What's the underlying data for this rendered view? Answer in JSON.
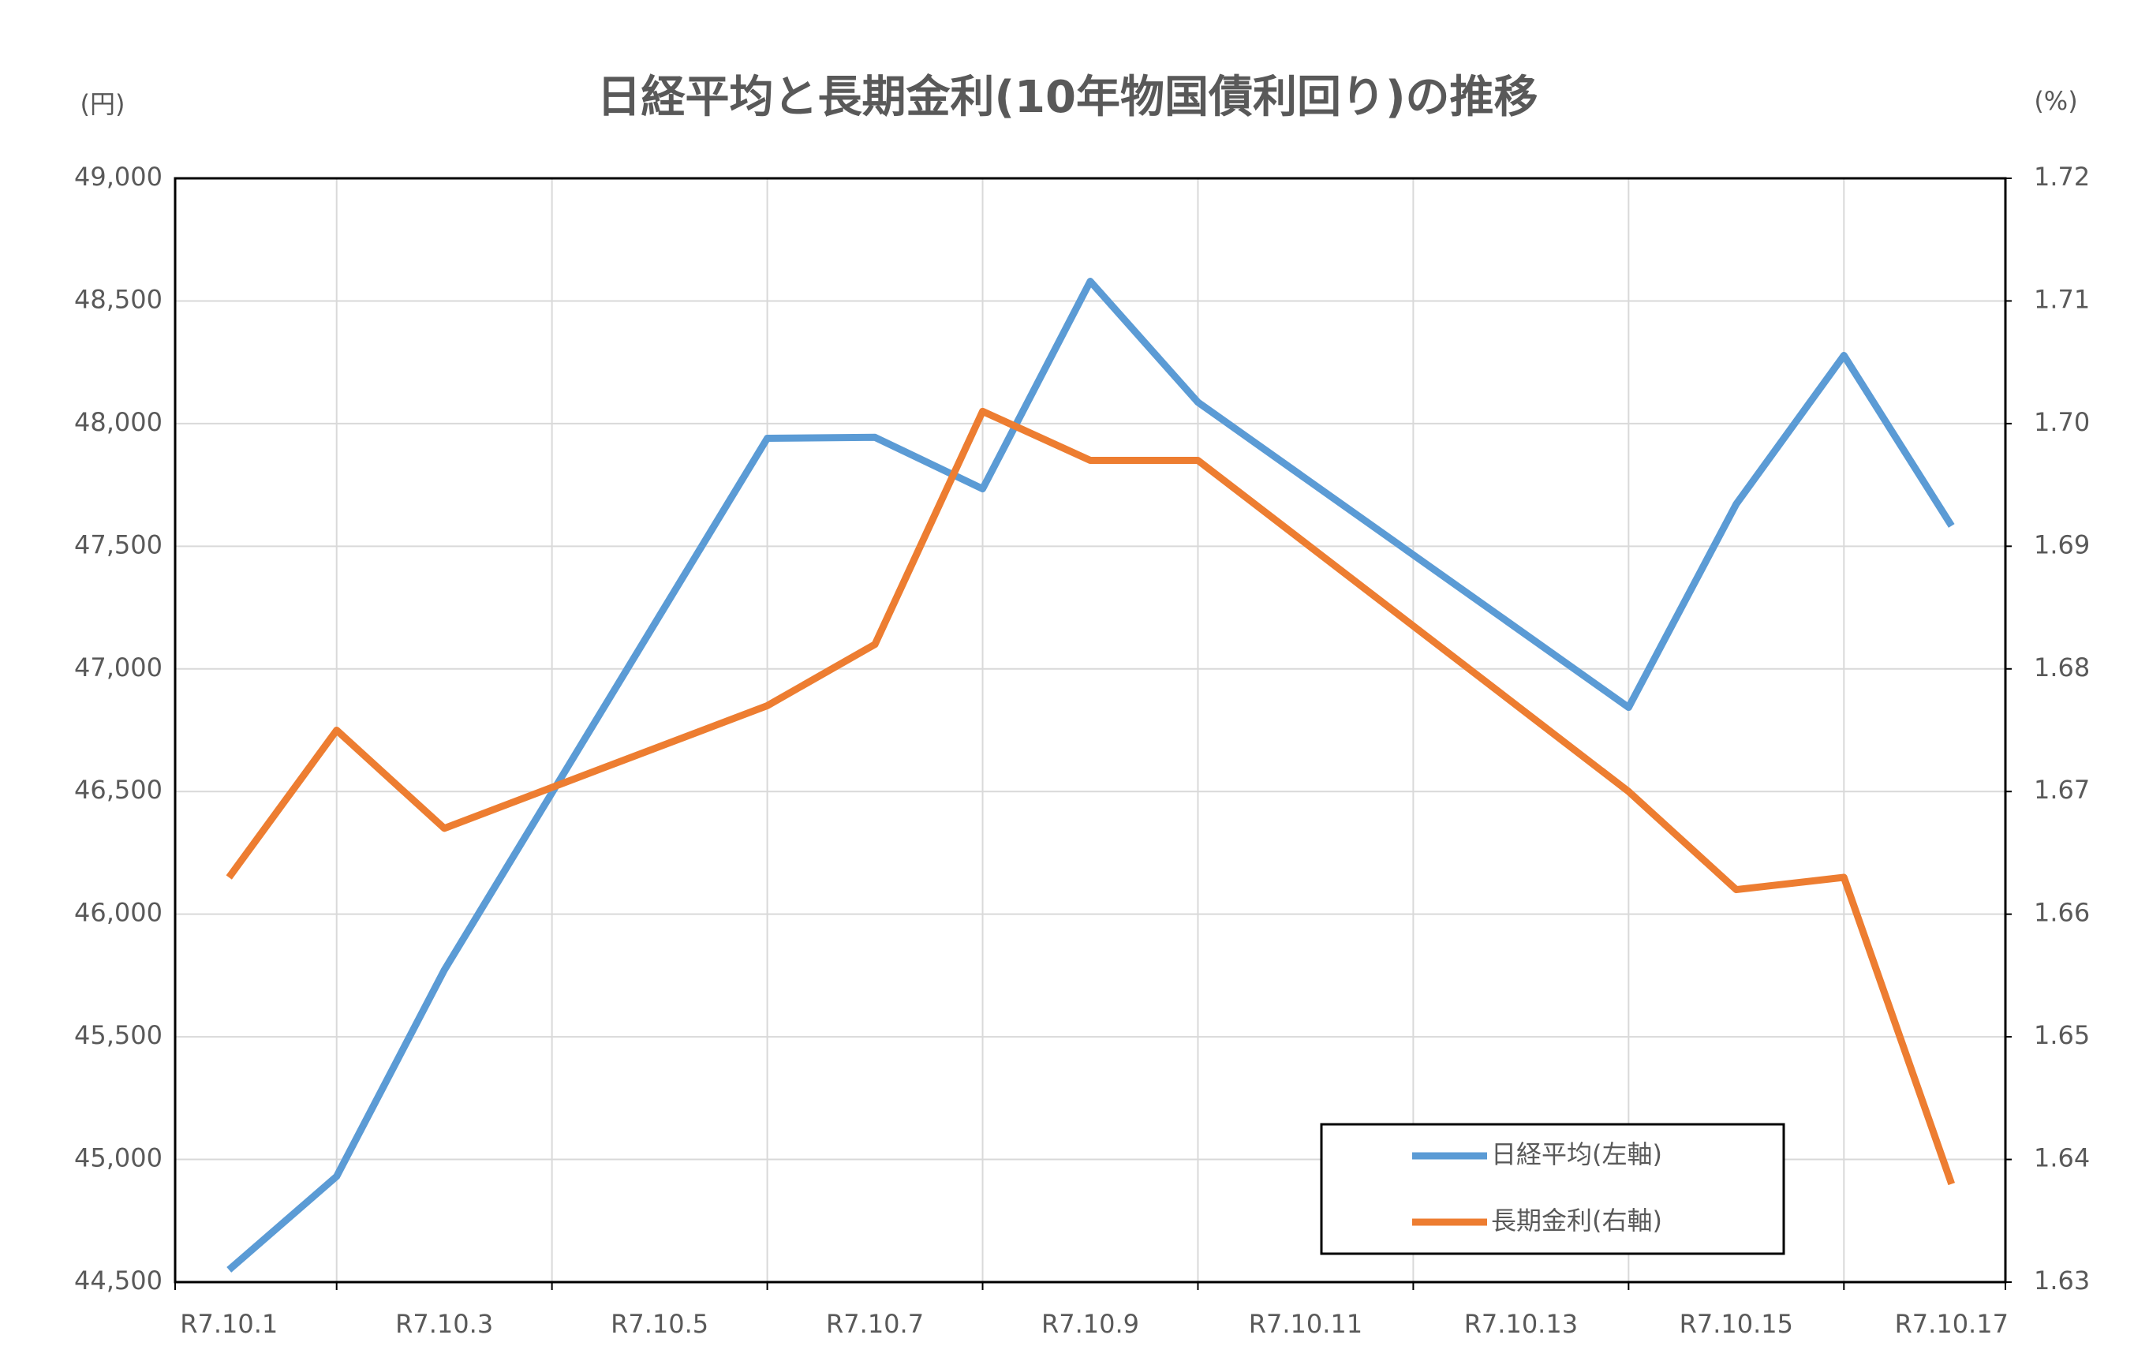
{
  "chart_data": {
    "type": "line",
    "title": "日経平均と長期金利(10年物国債利回り)の推移",
    "y_label": "(円)",
    "y2_label": "(%)",
    "x": [
      1,
      2,
      3,
      6,
      7,
      8,
      9,
      10,
      14,
      15,
      16,
      17
    ],
    "xlim": [
      0.5,
      17.5
    ],
    "xticks": [
      {
        "value": 1,
        "label": "R7.10.1"
      },
      {
        "value": 3,
        "label": "R7.10.3"
      },
      {
        "value": 5,
        "label": "R7.10.5"
      },
      {
        "value": 7,
        "label": "R7.10.7"
      },
      {
        "value": 9,
        "label": "R7.10.9"
      },
      {
        "value": 11,
        "label": "R7.10.11"
      },
      {
        "value": 13,
        "label": "R7.10.13"
      },
      {
        "value": 15,
        "label": "R7.10.15"
      },
      {
        "value": 17,
        "label": "R7.10.17"
      }
    ],
    "ylim": [
      44500,
      49000
    ],
    "yticks": [
      {
        "value": 44500,
        "label": "44,500"
      },
      {
        "value": 45000,
        "label": "45,000"
      },
      {
        "value": 45500,
        "label": "45,500"
      },
      {
        "value": 46000,
        "label": "46,000"
      },
      {
        "value": 46500,
        "label": "46,500"
      },
      {
        "value": 47000,
        "label": "47,000"
      },
      {
        "value": 47500,
        "label": "47,500"
      },
      {
        "value": 48000,
        "label": "48,000"
      },
      {
        "value": 48500,
        "label": "48,500"
      },
      {
        "value": 49000,
        "label": "49,000"
      }
    ],
    "y2lim": [
      1.63,
      1.72
    ],
    "y2ticks": [
      1.63,
      1.64,
      1.65,
      1.66,
      1.67,
      1.68,
      1.69,
      {
        "value": 1.7,
        "label": "1.70"
      },
      1.71,
      1.72
    ],
    "grid": true,
    "legend": "lower right",
    "series": [
      {
        "name": "日経平均(左軸)",
        "color": "#5b9bd5",
        "values": [
          44550,
          44931,
          45772,
          47940,
          47944,
          47734,
          48580,
          48087,
          46843,
          47672,
          48278,
          47583
        ]
      },
      {
        "name": "長期金利(右軸)",
        "color": "#ed7d31",
        "axis": "y2",
        "values": [
          1.663,
          1.675,
          1.667,
          1.677,
          1.682,
          1.701,
          1.697,
          1.697,
          1.67,
          1.662,
          1.663,
          1.638
        ]
      }
    ]
  }
}
